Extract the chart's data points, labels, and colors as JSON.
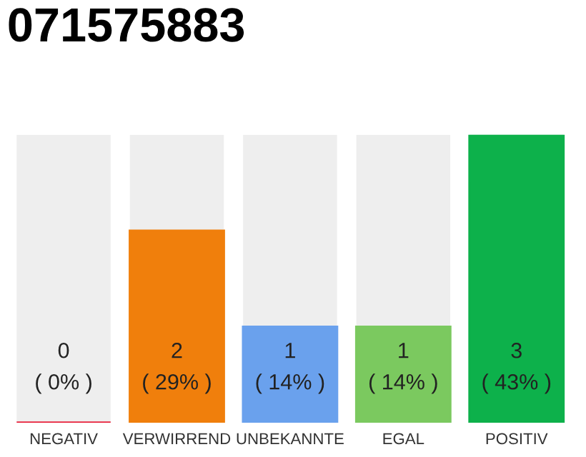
{
  "chart_data": {
    "type": "bar",
    "title": "071575883",
    "categories": [
      "NEGATIV",
      "VERWIRREND",
      "UNBEKANNTE",
      "EGAL",
      "POSITIV"
    ],
    "values": [
      0,
      2,
      1,
      1,
      3
    ],
    "colors": [
      "#e8203a",
      "#f07f0c",
      "#6aa1ed",
      "#7bc95f",
      "#0db14b"
    ],
    "ylim": [
      0,
      3
    ],
    "grid": false,
    "legend": false,
    "value_labels": [
      "0\n( 0% )",
      "2\n( 29% )",
      "1\n( 14% )",
      "1\n( 14% )",
      "3\n( 43% )"
    ]
  }
}
